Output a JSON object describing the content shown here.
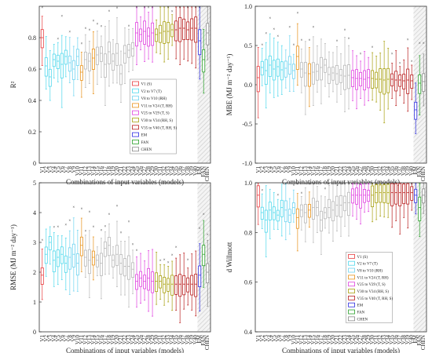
{
  "chart_data": [
    {
      "type": "box",
      "ylabel": "R²",
      "xlabel": "Combinations of input variables (models)",
      "ylim": [
        0,
        1.0
      ],
      "yticks": [
        "0",
        "0.2",
        "0.4",
        "0.6",
        "0.8"
      ],
      "series": [
        {
          "name": "V1 (S)",
          "values": [
            0.8
          ]
        },
        {
          "name": "V2 to V7 (T)",
          "values": [
            0.62,
            0.55,
            0.66,
            0.65,
            0.63,
            0.68
          ]
        },
        {
          "name": "V8 to V10 (RH)",
          "values": [
            0.64,
            0.6,
            0.68
          ]
        },
        {
          "name": "V11 to V24 (T, RH)",
          "values": [
            0.58,
            0.66,
            0.65,
            0.67,
            0.69,
            0.7,
            0.63,
            0.71,
            0.65,
            0.7,
            0.57,
            0.7,
            0.72,
            0.73
          ]
        },
        {
          "name": "V25 to V29 (T, S)",
          "values": [
            0.83,
            0.82,
            0.84,
            0.81,
            0.83
          ]
        },
        {
          "name": "V30 to V34 (RH, S)",
          "values": [
            0.82,
            0.83,
            0.84,
            0.84,
            0.85
          ]
        },
        {
          "name": "V35 to V40 (T, RH, S)",
          "values": [
            0.85,
            0.86,
            0.86,
            0.85,
            0.86,
            0.86
          ]
        },
        {
          "name": "EM",
          "values": [
            0.78
          ]
        },
        {
          "name": "FAN",
          "values": [
            0.66
          ]
        },
        {
          "name": "CHEN",
          "values": [
            0.83
          ]
        }
      ]
    },
    {
      "type": "box",
      "ylabel": "MBE (MJ m⁻² day⁻¹)",
      "xlabel": "Combinations of input variables (models)",
      "ylim": [
        -1.0,
        1.0
      ],
      "yticks": [
        "-1.0",
        "-0.5",
        "0.0",
        "0.5",
        "1.0"
      ],
      "series": [
        {
          "name": "V1 (S)",
          "values": [
            0.09
          ]
        },
        {
          "name": "V2 to V7 (T)",
          "values": [
            0.22,
            0.18,
            0.25,
            0.2,
            0.23,
            0.19
          ]
        },
        {
          "name": "V8 to V10 (RH)",
          "values": [
            0.21,
            0.26,
            0.18
          ]
        },
        {
          "name": "V11 to V24 (T, RH)",
          "values": [
            0.36,
            0.2,
            0.15,
            0.14,
            0.16,
            0.17,
            0.22,
            0.25,
            0.13,
            0.15,
            0.14,
            0.12,
            0.11,
            0.12
          ]
        },
        {
          "name": "V25 to V29 (T, S)",
          "values": [
            0.09,
            0.08,
            0.08,
            0.07,
            0.09
          ]
        },
        {
          "name": "V30 to V34 (RH, S)",
          "values": [
            0.08,
            0.07,
            0.07,
            0.06,
            0.07
          ]
        },
        {
          "name": "V35 to V40 (T, RH, S)",
          "values": [
            0.07,
            0.06,
            0.06,
            0.05,
            0.06,
            0.05
          ]
        },
        {
          "name": "EM",
          "values": [
            -0.32
          ]
        },
        {
          "name": "FAN",
          "values": [
            0.02
          ]
        },
        {
          "name": "CHEN",
          "values": [
            0.04
          ]
        }
      ]
    },
    {
      "type": "box",
      "ylabel": "RMSE (MJ m⁻² day⁻¹)",
      "xlabel": "Combinations of input variables (models)",
      "ylim": [
        0,
        5
      ],
      "yticks": [
        "0",
        "1",
        "2",
        "3",
        "4",
        "5"
      ],
      "series": [
        {
          "name": "V1 (S)",
          "values": [
            1.9
          ]
        },
        {
          "name": "V2 to V7 (T)",
          "values": [
            2.6,
            3.0,
            2.4,
            2.5,
            2.6,
            2.3
          ]
        },
        {
          "name": "V8 to V10 (RH)",
          "values": [
            2.5,
            2.6,
            2.3
          ]
        },
        {
          "name": "V11 to V24 (T, RH)",
          "values": [
            2.9,
            2.5,
            2.4,
            2.5,
            2.4,
            2.3,
            2.8,
            2.9,
            2.4,
            2.6,
            2.3,
            2.2,
            2.2,
            2.1
          ]
        },
        {
          "name": "V25 to V29 (T, S)",
          "values": [
            1.7,
            1.8,
            1.7,
            1.8,
            1.7
          ]
        },
        {
          "name": "V30 to V34 (RH, S)",
          "values": [
            1.7,
            1.7,
            1.6,
            1.6,
            1.6
          ]
        },
        {
          "name": "V35 to V40 (T, RH, S)",
          "values": [
            1.6,
            1.6,
            1.6,
            1.6,
            1.6,
            1.6
          ]
        },
        {
          "name": "EM",
          "values": [
            1.9
          ]
        },
        {
          "name": "FAN",
          "values": [
            2.6
          ]
        },
        {
          "name": "CHEN",
          "values": [
            2.0
          ]
        }
      ]
    },
    {
      "type": "box",
      "ylabel": "d Willmott",
      "xlabel": "Combinations of input variables (models)",
      "ylim": [
        0.4,
        1.0
      ],
      "yticks": [
        "0.4",
        "0.6",
        "0.8",
        "1.0"
      ],
      "series": [
        {
          "name": "V1 (S)",
          "values": [
            0.95
          ]
        },
        {
          "name": "V2 to V7 (T)",
          "values": [
            0.88,
            0.85,
            0.89,
            0.88,
            0.87,
            0.9
          ]
        },
        {
          "name": "V8 to V10 (RH)",
          "values": [
            0.89,
            0.87,
            0.9
          ]
        },
        {
          "name": "V11 to V24 (T, RH)",
          "values": [
            0.86,
            0.89,
            0.88,
            0.89,
            0.9,
            0.9,
            0.85,
            0.88,
            0.9,
            0.89,
            0.91,
            0.91,
            0.92,
            0.92
          ]
        },
        {
          "name": "V25 to V29 (T, S)",
          "values": [
            0.95,
            0.95,
            0.95,
            0.95,
            0.95
          ]
        },
        {
          "name": "V30 to V34 (RH, S)",
          "values": [
            0.95,
            0.96,
            0.96,
            0.96,
            0.96
          ]
        },
        {
          "name": "V35 to V40 (T, RH, S)",
          "values": [
            0.96,
            0.96,
            0.96,
            0.96,
            0.96,
            0.96
          ]
        },
        {
          "name": "EM",
          "values": [
            0.95
          ]
        },
        {
          "name": "FAN",
          "values": [
            0.9
          ]
        },
        {
          "name": "CHEN",
          "values": [
            0.95
          ]
        }
      ]
    }
  ],
  "legend": [
    {
      "label": "V1 (S)",
      "color": "#e8383b"
    },
    {
      "label": "V2 to V7 (T)",
      "color": "#4fd8ec"
    },
    {
      "label": "V8 to V10 (RH)",
      "color": "#6fd4f0"
    },
    {
      "label": "V11 to V24 (T, RH)",
      "color": "#e8921a"
    },
    {
      "label": "V25 to V29 (T, S)",
      "color": "#e040e0"
    },
    {
      "label": "V30 to V34 (RH, S)",
      "color": "#a8a010"
    },
    {
      "label": "V35 to V40 (T, RH, S)",
      "color": "#b81c1c"
    },
    {
      "label": "EM",
      "color": "#2a2ae0"
    },
    {
      "label": "FAN",
      "color": "#28a028"
    },
    {
      "label": "CHEN",
      "color": "#888888"
    }
  ],
  "tick_labels": [
    "V1",
    "V2",
    "V3",
    "V4",
    "V5",
    "V6",
    "V7",
    "V8",
    "V9",
    "V10",
    "V11",
    "V12",
    "V13",
    "V14",
    "V15",
    "V16",
    "V17",
    "V18",
    "V19",
    "V20",
    "V21",
    "V22",
    "V23",
    "V24",
    "V25",
    "V26",
    "V27",
    "V28",
    "V29",
    "V30",
    "V31",
    "V32",
    "V33",
    "V34",
    "V35",
    "V36",
    "V37",
    "V38",
    "V39",
    "V40",
    "EM",
    "FAN",
    "CHEN"
  ],
  "colors": {
    "V1": "#e8383b",
    "T": "#4fd8ec",
    "RH": "#6fd4f0",
    "TRH": "#b8b8b8",
    "TRH_highlight": "#e8921a",
    "TS": "#e040e0",
    "RHS": "#a8a010",
    "TRHS": "#b81c1c",
    "EM": "#2a2ae0",
    "FAN": "#28a028",
    "CHEN": "#888888"
  }
}
